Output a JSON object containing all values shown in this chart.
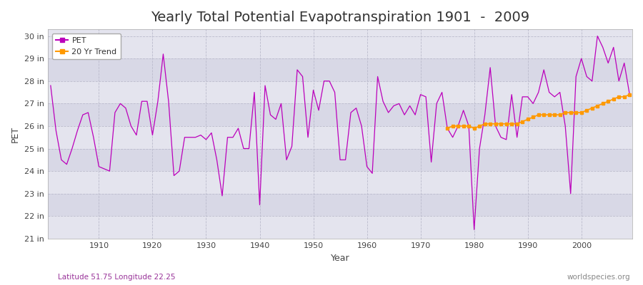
{
  "title": "Yearly Total Potential Evapotranspiration 1901  -  2009",
  "xlabel": "Year",
  "ylabel": "PET",
  "subtitle_left": "Latitude 51.75 Longitude 22.25",
  "subtitle_right": "worldspecies.org",
  "bg_color": "#ffffff",
  "plot_bg_outer": "#d8d8e8",
  "plot_bg_band1": "#e0e0ec",
  "plot_bg_band2": "#d0d0e0",
  "pet_color": "#bb00bb",
  "trend_color": "#ff9900",
  "years": [
    1901,
    1902,
    1903,
    1904,
    1905,
    1906,
    1907,
    1908,
    1909,
    1910,
    1911,
    1912,
    1913,
    1914,
    1915,
    1916,
    1917,
    1918,
    1919,
    1920,
    1921,
    1922,
    1923,
    1924,
    1925,
    1926,
    1927,
    1928,
    1929,
    1930,
    1931,
    1932,
    1933,
    1934,
    1935,
    1936,
    1937,
    1938,
    1939,
    1940,
    1941,
    1942,
    1943,
    1944,
    1945,
    1946,
    1947,
    1948,
    1949,
    1950,
    1951,
    1952,
    1953,
    1954,
    1955,
    1956,
    1957,
    1958,
    1959,
    1960,
    1961,
    1962,
    1963,
    1964,
    1965,
    1966,
    1967,
    1968,
    1969,
    1970,
    1971,
    1972,
    1973,
    1974,
    1975,
    1976,
    1977,
    1978,
    1979,
    1980,
    1981,
    1982,
    1983,
    1984,
    1985,
    1986,
    1987,
    1988,
    1989,
    1990,
    1991,
    1992,
    1993,
    1994,
    1995,
    1996,
    1997,
    1998,
    1999,
    2000,
    2001,
    2002,
    2003,
    2004,
    2005,
    2006,
    2007,
    2008,
    2009
  ],
  "pet_values": [
    27.8,
    25.8,
    24.5,
    24.3,
    25.0,
    25.8,
    26.5,
    26.6,
    25.5,
    24.2,
    24.1,
    24.0,
    26.6,
    27.0,
    26.8,
    26.0,
    25.6,
    27.1,
    27.1,
    25.6,
    27.1,
    29.2,
    27.1,
    23.8,
    24.0,
    25.5,
    25.5,
    25.5,
    25.6,
    25.4,
    25.7,
    24.5,
    22.9,
    25.5,
    25.5,
    25.9,
    25.0,
    25.0,
    27.5,
    22.5,
    27.8,
    26.5,
    26.3,
    27.0,
    24.5,
    25.1,
    28.5,
    28.2,
    25.5,
    27.6,
    26.7,
    28.0,
    28.0,
    27.5,
    24.5,
    24.5,
    26.6,
    26.8,
    26.0,
    24.2,
    23.9,
    28.2,
    27.1,
    26.6,
    26.9,
    27.0,
    26.5,
    26.9,
    26.5,
    27.4,
    27.3,
    24.4,
    27.0,
    27.5,
    25.9,
    25.5,
    26.0,
    26.7,
    26.0,
    21.4,
    25.0,
    26.5,
    28.6,
    26.0,
    25.5,
    25.4,
    27.4,
    25.5,
    27.3,
    27.3,
    27.0,
    27.5,
    28.5,
    27.5,
    27.3,
    27.5,
    26.0,
    23.0,
    28.2,
    29.0,
    28.2,
    28.0,
    30.0,
    29.5,
    28.8,
    29.5,
    28.0,
    28.8,
    27.4
  ],
  "trend_years": [
    1975,
    1976,
    1977,
    1978,
    1979,
    1980,
    1981,
    1982,
    1983,
    1984,
    1985,
    1986,
    1987,
    1988,
    1989,
    1990,
    1991,
    1992,
    1993,
    1994,
    1995,
    1996,
    1997,
    1998,
    1999,
    2000,
    2001,
    2002,
    2003,
    2004,
    2005,
    2006,
    2007,
    2008,
    2009
  ],
  "trend_values": [
    25.9,
    26.0,
    26.0,
    26.0,
    26.0,
    25.9,
    26.0,
    26.1,
    26.1,
    26.1,
    26.1,
    26.1,
    26.1,
    26.1,
    26.2,
    26.3,
    26.4,
    26.5,
    26.5,
    26.5,
    26.5,
    26.5,
    26.6,
    26.6,
    26.6,
    26.6,
    26.7,
    26.8,
    26.9,
    27.0,
    27.1,
    27.2,
    27.3,
    27.3,
    27.4
  ],
  "ylim": [
    21.0,
    30.3
  ],
  "yticks": [
    21,
    22,
    23,
    24,
    25,
    26,
    27,
    28,
    29,
    30
  ],
  "ytick_labels": [
    "21 in",
    "22 in",
    "23 in",
    "24 in",
    "25 in",
    "26 in",
    "27 in",
    "28 in",
    "29 in",
    "30 in"
  ],
  "xlim": [
    1900.5,
    2009.5
  ],
  "xticks": [
    1910,
    1920,
    1930,
    1940,
    1950,
    1960,
    1970,
    1980,
    1990,
    2000
  ],
  "title_fontsize": 14,
  "axis_label_fontsize": 9,
  "tick_fontsize": 8,
  "legend_fontsize": 8,
  "subtitle_fontsize": 7.5
}
